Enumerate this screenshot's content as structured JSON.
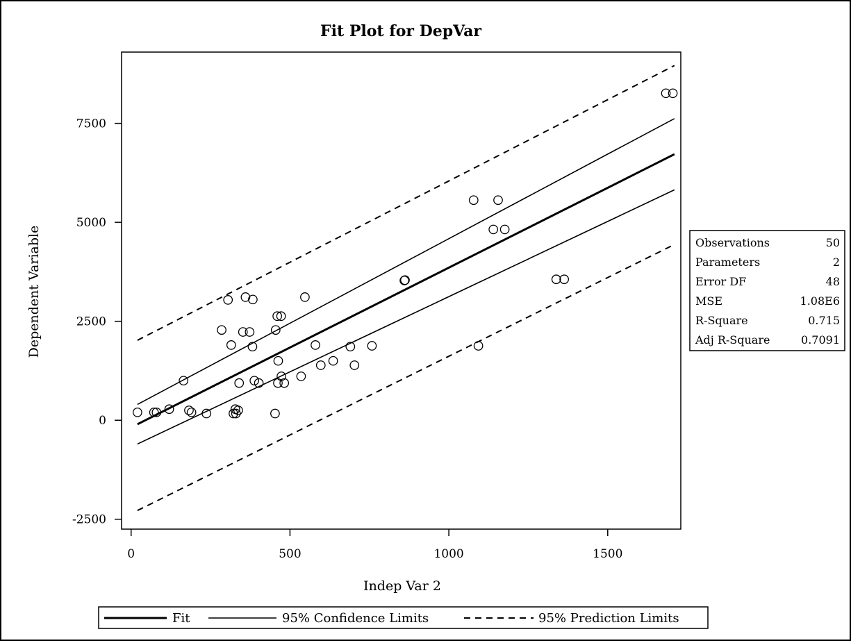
{
  "colors": {
    "ink": "#000000",
    "background": "#ffffff"
  },
  "chart_data": {
    "type": "scatter",
    "title": "Fit Plot for DepVar",
    "xlabel": "Indep Var 2",
    "ylabel": "Dependent Variable",
    "xlim": [
      -30,
      1730
    ],
    "ylim": [
      -2750,
      9300
    ],
    "xticks": [
      0,
      500,
      1000,
      1500
    ],
    "yticks": [
      -2500,
      0,
      2500,
      5000,
      7500
    ],
    "grid": false,
    "legend_position": "bottom",
    "points": [
      [
        20,
        200
      ],
      [
        72,
        200
      ],
      [
        80,
        200
      ],
      [
        120,
        280
      ],
      [
        165,
        1000
      ],
      [
        182,
        250
      ],
      [
        190,
        200
      ],
      [
        237,
        170
      ],
      [
        285,
        2280
      ],
      [
        305,
        3040
      ],
      [
        315,
        1900
      ],
      [
        322,
        170
      ],
      [
        328,
        280
      ],
      [
        330,
        170
      ],
      [
        337,
        250
      ],
      [
        340,
        940
      ],
      [
        352,
        2230
      ],
      [
        360,
        3110
      ],
      [
        373,
        2230
      ],
      [
        382,
        1860
      ],
      [
        383,
        3050
      ],
      [
        388,
        1000
      ],
      [
        402,
        940
      ],
      [
        453,
        170
      ],
      [
        455,
        2280
      ],
      [
        460,
        2630
      ],
      [
        462,
        940
      ],
      [
        463,
        1500
      ],
      [
        472,
        2630
      ],
      [
        473,
        1110
      ],
      [
        482,
        940
      ],
      [
        535,
        1110
      ],
      [
        547,
        3110
      ],
      [
        580,
        1900
      ],
      [
        597,
        1390
      ],
      [
        636,
        1500
      ],
      [
        690,
        1860
      ],
      [
        703,
        1390
      ],
      [
        758,
        1880
      ],
      [
        860,
        3530
      ],
      [
        862,
        3540
      ],
      [
        1078,
        5560
      ],
      [
        1093,
        1880
      ],
      [
        1140,
        4820
      ],
      [
        1155,
        5560
      ],
      [
        1176,
        4820
      ],
      [
        1338,
        3560
      ],
      [
        1363,
        3560
      ],
      [
        1683,
        8260
      ],
      [
        1705,
        8260
      ]
    ],
    "fit": {
      "x": [
        20,
        1710
      ],
      "y": [
        -100,
        6720
      ]
    },
    "confidence_upper": {
      "x": [
        20,
        1710
      ],
      "y": [
        400,
        7620
      ]
    },
    "confidence_lower": {
      "x": [
        20,
        1710
      ],
      "y": [
        -600,
        5820
      ]
    },
    "prediction_upper": {
      "x": [
        20,
        1710
      ],
      "y": [
        2020,
        8960
      ]
    },
    "prediction_lower": {
      "x": [
        20,
        1710
      ],
      "y": [
        -2280,
        4440
      ]
    },
    "stats": [
      {
        "label": "Observations",
        "value": "50"
      },
      {
        "label": "Parameters",
        "value": "2"
      },
      {
        "label": "Error DF",
        "value": "48"
      },
      {
        "label": "MSE",
        "value": "1.08E6"
      },
      {
        "label": "R-Square",
        "value": "0.715"
      },
      {
        "label": "Adj R-Square",
        "value": "0.7091"
      }
    ],
    "legend": [
      {
        "label": "Fit",
        "style": "thick-solid"
      },
      {
        "label": "95% Confidence Limits",
        "style": "solid"
      },
      {
        "label": "95% Prediction Limits",
        "style": "dashed"
      }
    ]
  }
}
